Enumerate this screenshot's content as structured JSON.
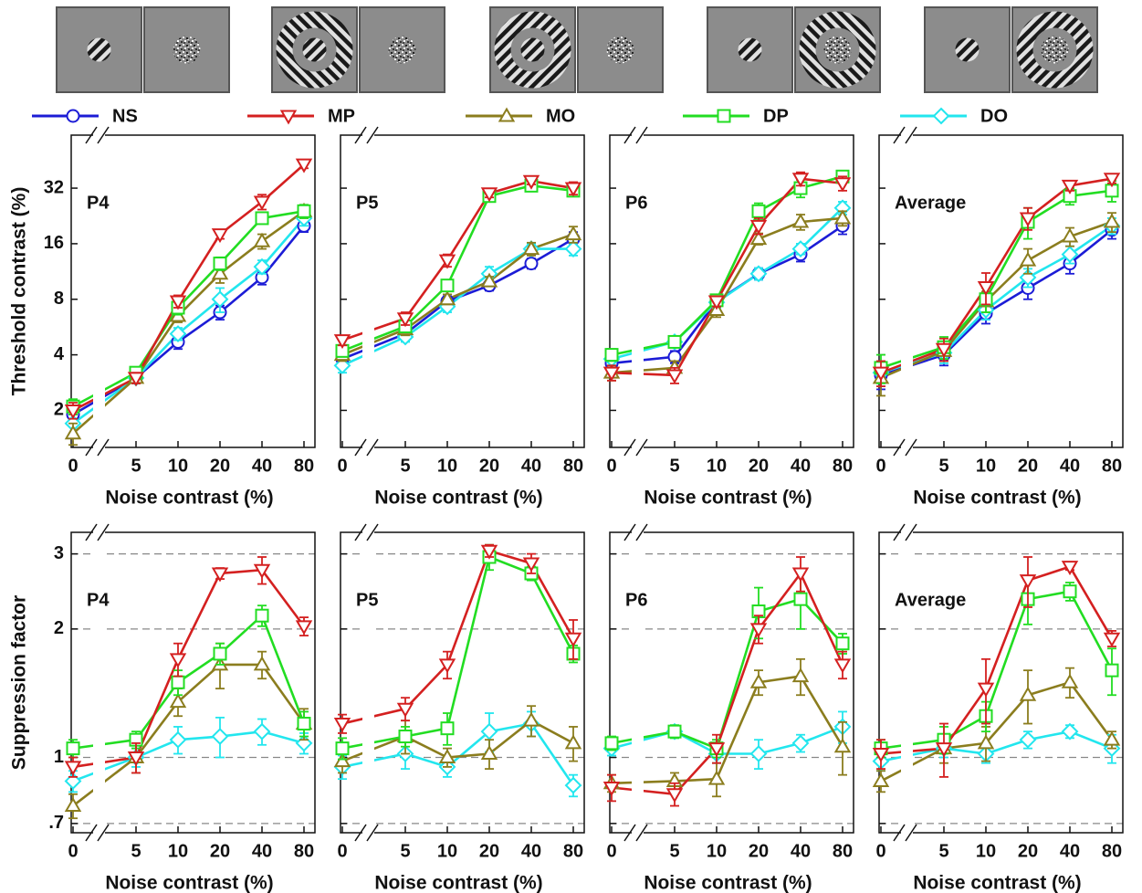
{
  "legend": [
    {
      "name": "NS",
      "color": "#1c1cd6",
      "marker": "circle"
    },
    {
      "name": "MP",
      "color": "#d42020",
      "marker": "tri-down"
    },
    {
      "name": "MO",
      "color": "#8b7d1e",
      "marker": "tri-up"
    },
    {
      "name": "DP",
      "color": "#22dd22",
      "marker": "square"
    },
    {
      "name": "DO",
      "color": "#22e6ee",
      "marker": "diamond"
    }
  ],
  "chart_data": [
    {
      "type": "line",
      "panel_label": "P4",
      "ylabel": "Threshold contrast (%)",
      "xlabel": "Noise contrast (%)",
      "categories": [
        0,
        5,
        10,
        20,
        40,
        80
      ],
      "log_y": true,
      "ylim": [
        1.26,
        62
      ],
      "yticks": [
        2,
        4,
        8,
        16,
        32
      ],
      "ytick_labels": true,
      "grid": false,
      "series": [
        {
          "name": "NS",
          "values": [
            1.9,
            3.0,
            4.7,
            6.8,
            10.5,
            20
          ],
          "errors": [
            0.2,
            0.2,
            0.4,
            0.6,
            0.9,
            1.5
          ]
        },
        {
          "name": "MP",
          "values": [
            2.0,
            3.0,
            7.8,
            18,
            27,
            43
          ],
          "errors": [
            0.2,
            0.2,
            0.6,
            1.0,
            2.5,
            2.0
          ]
        },
        {
          "name": "MO",
          "values": [
            1.5,
            3.0,
            6.5,
            11,
            16.5,
            24
          ],
          "errors": [
            0.2,
            0.2,
            0.5,
            1.2,
            1.5,
            2.0
          ]
        },
        {
          "name": "DP",
          "values": [
            2.1,
            3.2,
            7.2,
            12.5,
            22,
            24
          ],
          "errors": [
            0.2,
            0.2,
            0.6,
            1.0,
            1.5,
            2.0
          ]
        },
        {
          "name": "DO",
          "values": [
            1.7,
            3.0,
            5.2,
            8.0,
            12,
            22
          ],
          "errors": [
            0.2,
            0.2,
            0.4,
            1.2,
            1.0,
            2.0
          ]
        }
      ]
    },
    {
      "type": "line",
      "panel_label": "P5",
      "xlabel": "Noise contrast (%)",
      "categories": [
        0,
        5,
        10,
        20,
        40,
        80
      ],
      "log_y": true,
      "ylim": [
        1.26,
        62
      ],
      "yticks": [
        2,
        4,
        8,
        16,
        32
      ],
      "ytick_labels": false,
      "grid": false,
      "series": [
        {
          "name": "NS",
          "values": [
            3.8,
            5.2,
            7.8,
            9.5,
            12.5,
            17
          ],
          "errors": [
            0.3,
            0.3,
            0.5,
            0.6,
            0.8,
            1.5
          ]
        },
        {
          "name": "MP",
          "values": [
            4.8,
            6.3,
            13,
            30,
            35,
            32
          ],
          "errors": [
            0.3,
            0.5,
            1.0,
            1.5,
            1.5,
            2.5
          ]
        },
        {
          "name": "MO",
          "values": [
            4.0,
            5.5,
            8.0,
            10,
            15,
            18
          ],
          "errors": [
            0.3,
            0.4,
            0.5,
            0.6,
            1.2,
            1.8
          ]
        },
        {
          "name": "DP",
          "values": [
            4.2,
            5.7,
            9.5,
            29,
            33,
            31
          ],
          "errors": [
            0.3,
            0.4,
            0.6,
            2.0,
            1.5,
            2.0
          ]
        },
        {
          "name": "DO",
          "values": [
            3.5,
            5.0,
            7.3,
            11,
            15,
            15
          ],
          "errors": [
            0.3,
            0.3,
            0.5,
            1.0,
            1.0,
            1.2
          ]
        }
      ]
    },
    {
      "type": "line",
      "panel_label": "P6",
      "xlabel": "Noise contrast (%)",
      "categories": [
        0,
        5,
        10,
        20,
        40,
        80
      ],
      "log_y": true,
      "ylim": [
        1.26,
        62
      ],
      "yticks": [
        2,
        4,
        8,
        16,
        32
      ],
      "ytick_labels": false,
      "grid": false,
      "series": [
        {
          "name": "NS",
          "values": [
            3.6,
            3.9,
            7.8,
            11,
            14,
            20
          ],
          "errors": [
            0.3,
            0.3,
            0.5,
            0.8,
            1.2,
            2.0
          ]
        },
        {
          "name": "MP",
          "values": [
            3.2,
            3.1,
            7.8,
            20,
            36,
            34
          ],
          "errors": [
            0.3,
            0.3,
            0.5,
            2.0,
            3.0,
            3.0
          ]
        },
        {
          "name": "MO",
          "values": [
            3.2,
            3.4,
            7.0,
            17,
            21,
            22
          ],
          "errors": [
            0.3,
            0.3,
            0.6,
            1.2,
            2.0,
            2.0
          ]
        },
        {
          "name": "DP",
          "values": [
            4.0,
            4.7,
            7.9,
            24,
            32,
            37
          ],
          "errors": [
            0.3,
            0.3,
            0.5,
            2.5,
            3.5,
            2.5
          ]
        },
        {
          "name": "DO",
          "values": [
            3.8,
            4.7,
            7.7,
            11,
            15,
            25
          ],
          "errors": [
            0.3,
            0.3,
            0.5,
            0.8,
            1.0,
            2.0
          ]
        }
      ]
    },
    {
      "type": "line",
      "panel_label": "Average",
      "xlabel": "Noise contrast (%)",
      "categories": [
        0,
        5,
        10,
        20,
        40,
        80
      ],
      "log_y": true,
      "ylim": [
        1.26,
        62
      ],
      "yticks": [
        2,
        4,
        8,
        16,
        32
      ],
      "ytick_labels": false,
      "grid": false,
      "series": [
        {
          "name": "NS",
          "values": [
            3.1,
            4.0,
            6.7,
            9.2,
            12.5,
            19
          ],
          "errors": [
            0.5,
            0.5,
            0.8,
            1.2,
            1.5,
            2.0
          ]
        },
        {
          "name": "MP",
          "values": [
            3.2,
            4.3,
            9.3,
            22,
            33,
            36
          ],
          "errors": [
            0.5,
            0.6,
            1.8,
            3.0,
            2.0,
            2.0
          ]
        },
        {
          "name": "MO",
          "values": [
            3.0,
            4.2,
            7.8,
            13,
            17.5,
            21
          ],
          "errors": [
            0.6,
            0.5,
            1.0,
            2.0,
            2.0,
            2.5
          ]
        },
        {
          "name": "DP",
          "values": [
            3.4,
            4.4,
            8.0,
            21,
            29,
            31
          ],
          "errors": [
            0.6,
            0.6,
            1.2,
            4.0,
            3.0,
            4.0
          ]
        },
        {
          "name": "DO",
          "values": [
            3.2,
            4.1,
            7.0,
            10.5,
            14,
            20
          ],
          "errors": [
            0.5,
            0.5,
            0.8,
            1.2,
            1.5,
            2.0
          ]
        }
      ]
    },
    {
      "type": "line",
      "panel_label": "P4",
      "ylabel": "Suppression factor",
      "xlabel": "Noise contrast (%)",
      "categories": [
        0,
        5,
        10,
        20,
        40,
        80
      ],
      "log_y": true,
      "ylim": [
        0.666,
        3.37
      ],
      "yticks": [
        {
          "value": 0.7,
          "label": ".7"
        },
        1,
        2,
        3
      ],
      "ytick_labels": true,
      "grid": true,
      "series": [
        {
          "name": "MP",
          "values": [
            0.95,
            1.0,
            1.7,
            2.7,
            2.75,
            2.03
          ],
          "errors": [
            0.05,
            0.08,
            0.15,
            0.08,
            0.2,
            0.1
          ]
        },
        {
          "name": "MO",
          "values": [
            0.77,
            1.0,
            1.35,
            1.65,
            1.65,
            1.2
          ],
          "errors": [
            0.05,
            0.08,
            0.1,
            0.2,
            0.12,
            0.1
          ]
        },
        {
          "name": "DP",
          "values": [
            1.05,
            1.1,
            1.5,
            1.75,
            2.15,
            1.2
          ],
          "errors": [
            0.05,
            0.05,
            0.1,
            0.1,
            0.12,
            0.08
          ]
        },
        {
          "name": "DO",
          "values": [
            0.88,
            1.0,
            1.1,
            1.12,
            1.15,
            1.08
          ],
          "errors": [
            0.05,
            0.05,
            0.08,
            0.12,
            0.08,
            0.06
          ]
        }
      ]
    },
    {
      "type": "line",
      "panel_label": "P5",
      "xlabel": "Noise contrast (%)",
      "categories": [
        0,
        5,
        10,
        20,
        40,
        80
      ],
      "log_y": true,
      "ylim": [
        0.666,
        3.37
      ],
      "yticks": [
        {
          "value": 0.7,
          "label": ".7"
        },
        1,
        2,
        3
      ],
      "ytick_labels": false,
      "grid": true,
      "series": [
        {
          "name": "MP",
          "values": [
            1.2,
            1.3,
            1.65,
            3.05,
            2.85,
            1.9
          ],
          "errors": [
            0.06,
            0.08,
            0.12,
            0.1,
            0.15,
            0.2
          ]
        },
        {
          "name": "MO",
          "values": [
            0.98,
            1.12,
            1.0,
            1.02,
            1.22,
            1.08
          ],
          "errors": [
            0.06,
            0.1,
            0.05,
            0.08,
            0.1,
            0.1
          ]
        },
        {
          "name": "DP",
          "values": [
            1.05,
            1.12,
            1.17,
            2.95,
            2.7,
            1.75
          ],
          "errors": [
            0.06,
            0.06,
            0.1,
            0.2,
            0.1,
            0.08
          ]
        },
        {
          "name": "DO",
          "values": [
            0.95,
            1.02,
            0.95,
            1.15,
            1.2,
            0.86
          ],
          "errors": [
            0.06,
            0.08,
            0.05,
            0.12,
            0.08,
            0.05
          ]
        }
      ]
    },
    {
      "type": "line",
      "panel_label": "P6",
      "xlabel": "Noise contrast (%)",
      "categories": [
        0,
        5,
        10,
        20,
        40,
        80
      ],
      "log_y": true,
      "ylim": [
        0.666,
        3.37
      ],
      "yticks": [
        {
          "value": 0.7,
          "label": ".7"
        },
        1,
        2,
        3
      ],
      "ytick_labels": false,
      "grid": true,
      "series": [
        {
          "name": "MP",
          "values": [
            0.85,
            0.82,
            1.05,
            2.0,
            2.7,
            1.65
          ],
          "errors": [
            0.06,
            0.05,
            0.08,
            0.15,
            0.25,
            0.12
          ]
        },
        {
          "name": "MO",
          "values": [
            0.87,
            0.88,
            0.89,
            1.5,
            1.55,
            1.06
          ],
          "errors": [
            0.04,
            0.04,
            0.08,
            0.1,
            0.15,
            0.15
          ]
        },
        {
          "name": "DP",
          "values": [
            1.08,
            1.15,
            1.05,
            2.2,
            2.35,
            1.85
          ],
          "errors": [
            0.04,
            0.04,
            0.05,
            0.3,
            0.35,
            0.1
          ]
        },
        {
          "name": "DO",
          "values": [
            1.05,
            1.15,
            1.02,
            1.02,
            1.08,
            1.18
          ],
          "errors": [
            0.04,
            0.04,
            0.05,
            0.08,
            0.05,
            0.1
          ]
        }
      ]
    },
    {
      "type": "line",
      "panel_label": "Average",
      "xlabel": "Noise contrast (%)",
      "categories": [
        0,
        5,
        10,
        20,
        40,
        80
      ],
      "log_y": true,
      "ylim": [
        0.666,
        3.37
      ],
      "yticks": [
        {
          "value": 0.7,
          "label": ".7"
        },
        1,
        2,
        3
      ],
      "ytick_labels": false,
      "grid": true,
      "series": [
        {
          "name": "MP",
          "values": [
            1.02,
            1.05,
            1.45,
            2.6,
            2.8,
            1.9
          ],
          "errors": [
            0.08,
            0.15,
            0.25,
            0.35,
            0.05,
            0.08
          ]
        },
        {
          "name": "MO",
          "values": [
            0.88,
            1.05,
            1.08,
            1.4,
            1.5,
            1.1
          ],
          "errors": [
            0.05,
            0.08,
            0.1,
            0.2,
            0.12,
            0.05
          ]
        },
        {
          "name": "DP",
          "values": [
            1.05,
            1.1,
            1.25,
            2.35,
            2.45,
            1.6
          ],
          "errors": [
            0.05,
            0.08,
            0.1,
            0.3,
            0.12,
            0.2
          ]
        },
        {
          "name": "DO",
          "values": [
            0.98,
            1.05,
            1.02,
            1.1,
            1.15,
            1.05
          ],
          "errors": [
            0.05,
            0.05,
            0.05,
            0.05,
            0.04,
            0.08
          ]
        }
      ]
    }
  ]
}
